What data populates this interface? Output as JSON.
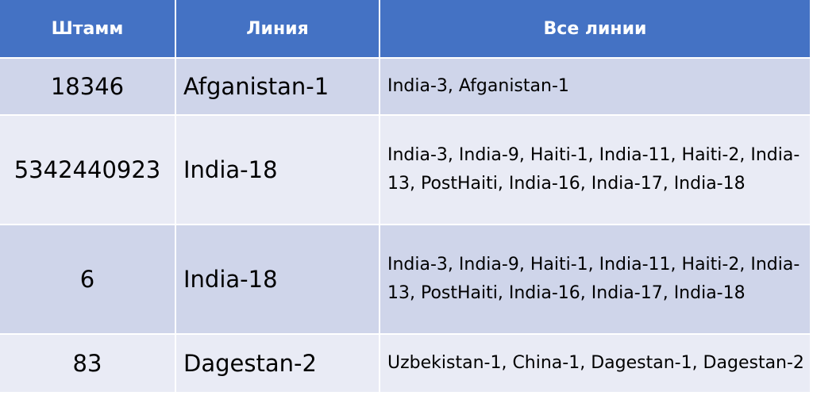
{
  "table": {
    "headers": [
      "Штамм",
      "Линия",
      "Все линии"
    ],
    "rows": [
      {
        "strain": "18346",
        "line": "Afganistan-1",
        "all_lines": "India-3, Afganistan-1"
      },
      {
        "strain": "5342440923",
        "line": "India-18",
        "all_lines": "India-3, India-9, Haiti-1, India-11, Haiti-2, India-13, PostHaiti, India-16, India-17, India-18"
      },
      {
        "strain": "6",
        "line": "India-18",
        "all_lines": "India-3, India-9, Haiti-1, India-11, Haiti-2, India-13, PostHaiti, India-16, India-17, India-18"
      },
      {
        "strain": "83",
        "line": "Dagestan-2",
        "all_lines": "Uzbekistan-1, China-1, Dagestan-1, Dagestan-2"
      }
    ]
  },
  "colors": {
    "header_bg": "#4472c4",
    "row_dark": "#cfd5ea",
    "row_light": "#e9ebf5"
  }
}
